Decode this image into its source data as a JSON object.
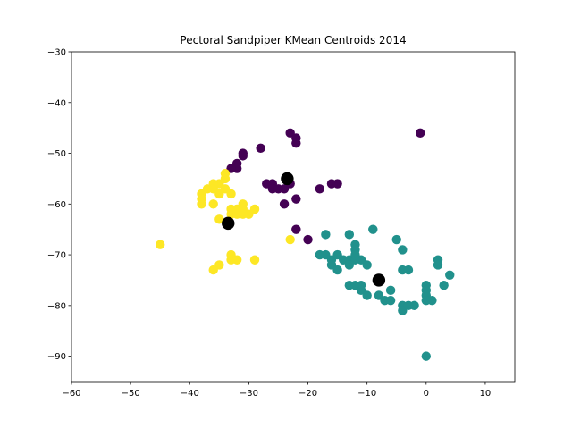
{
  "chart_data": {
    "type": "scatter",
    "title": "Pectoral Sandpiper KMean Centroids 2014",
    "xlabel": "",
    "ylabel": "",
    "xlim": [
      -60,
      15
    ],
    "ylim": [
      -95,
      -30
    ],
    "x_ticks": [
      -60,
      -50,
      -40,
      -30,
      -20,
      -10,
      0,
      10
    ],
    "y_ticks": [
      -90,
      -80,
      -70,
      -60,
      -50,
      -40,
      -30
    ],
    "x_tick_labels": [
      "−60",
      "−50",
      "−40",
      "−30",
      "−20",
      "−10",
      "0",
      "10"
    ],
    "y_tick_labels": [
      "−90",
      "−80",
      "−70",
      "−60",
      "−50",
      "−40",
      "−30"
    ],
    "grid": false,
    "legend": "none",
    "colors": {
      "cluster_0": "#440154",
      "cluster_1": "#21918c",
      "cluster_2": "#fde725",
      "centroid": "#000000"
    },
    "series": [
      {
        "cluster": 0,
        "color": "#440154",
        "points": [
          [
            -23,
            -46
          ],
          [
            -22,
            -47
          ],
          [
            -22,
            -48
          ],
          [
            -31,
            -50
          ],
          [
            -31,
            -50.5
          ],
          [
            -28,
            -49
          ],
          [
            -32,
            -52
          ],
          [
            -32,
            -53
          ],
          [
            -33,
            -53
          ],
          [
            -27,
            -56
          ],
          [
            -26,
            -56
          ],
          [
            -26,
            -57
          ],
          [
            -25,
            -57
          ],
          [
            -24,
            -57
          ],
          [
            -23,
            -56
          ],
          [
            -18,
            -57
          ],
          [
            -16,
            -56
          ],
          [
            -15,
            -56
          ],
          [
            -22,
            -59
          ],
          [
            -24,
            -60
          ],
          [
            -22,
            -65
          ],
          [
            -20,
            -67
          ],
          [
            -1,
            -46
          ]
        ]
      },
      {
        "cluster": 1,
        "color": "#21918c",
        "points": [
          [
            -18,
            -70
          ],
          [
            -17,
            -70
          ],
          [
            -16,
            -71
          ],
          [
            -15,
            -70
          ],
          [
            -14,
            -71
          ],
          [
            -13,
            -71
          ],
          [
            -12,
            -71
          ],
          [
            -11,
            -71
          ],
          [
            -12,
            -68
          ],
          [
            -12,
            -69
          ],
          [
            -12,
            -70
          ],
          [
            -9,
            -65
          ],
          [
            -17,
            -66
          ],
          [
            -13,
            -66
          ],
          [
            -5,
            -67
          ],
          [
            -4,
            -69
          ],
          [
            -16,
            -72
          ],
          [
            -15,
            -73
          ],
          [
            -13,
            -72
          ],
          [
            -10,
            -72
          ],
          [
            -13,
            -76
          ],
          [
            -12,
            -76
          ],
          [
            -11,
            -76
          ],
          [
            -11,
            -77
          ],
          [
            -10,
            -78
          ],
          [
            -8,
            -78
          ],
          [
            -7,
            -79
          ],
          [
            -6,
            -77
          ],
          [
            -6,
            -79
          ],
          [
            -4,
            -73
          ],
          [
            -3,
            -73
          ],
          [
            -4,
            -80
          ],
          [
            -4,
            -81
          ],
          [
            -3,
            -80
          ],
          [
            -2,
            -80
          ],
          [
            0,
            -76
          ],
          [
            0,
            -77
          ],
          [
            0,
            -78
          ],
          [
            0,
            -79
          ],
          [
            1,
            -79
          ],
          [
            2,
            -71
          ],
          [
            2,
            -72
          ],
          [
            3,
            -76
          ],
          [
            4,
            -74
          ],
          [
            0,
            -90
          ]
        ]
      },
      {
        "cluster": 2,
        "color": "#fde725",
        "points": [
          [
            -34,
            -54
          ],
          [
            -34,
            -55
          ],
          [
            -35,
            -56
          ],
          [
            -36,
            -56
          ],
          [
            -36,
            -57
          ],
          [
            -37,
            -57
          ],
          [
            -38,
            -58
          ],
          [
            -38,
            -59
          ],
          [
            -38,
            -60
          ],
          [
            -36,
            -60
          ],
          [
            -35,
            -58
          ],
          [
            -34,
            -57
          ],
          [
            -33,
            -58
          ],
          [
            -33,
            -61
          ],
          [
            -33,
            -62
          ],
          [
            -32,
            -61
          ],
          [
            -31,
            -60
          ],
          [
            -31,
            -61
          ],
          [
            -30,
            -62
          ],
          [
            -29,
            -61
          ],
          [
            -32,
            -62
          ],
          [
            -31,
            -62
          ],
          [
            -35,
            -63
          ],
          [
            -33,
            -70
          ],
          [
            -33,
            -71
          ],
          [
            -32,
            -71
          ],
          [
            -29,
            -71
          ],
          [
            -35,
            -72
          ],
          [
            -36,
            -73
          ],
          [
            -45,
            -68
          ],
          [
            -23,
            -67
          ]
        ]
      }
    ],
    "centroids": [
      [
        -23.5,
        -55
      ],
      [
        -8,
        -75
      ],
      [
        -33.5,
        -63.8
      ]
    ]
  }
}
